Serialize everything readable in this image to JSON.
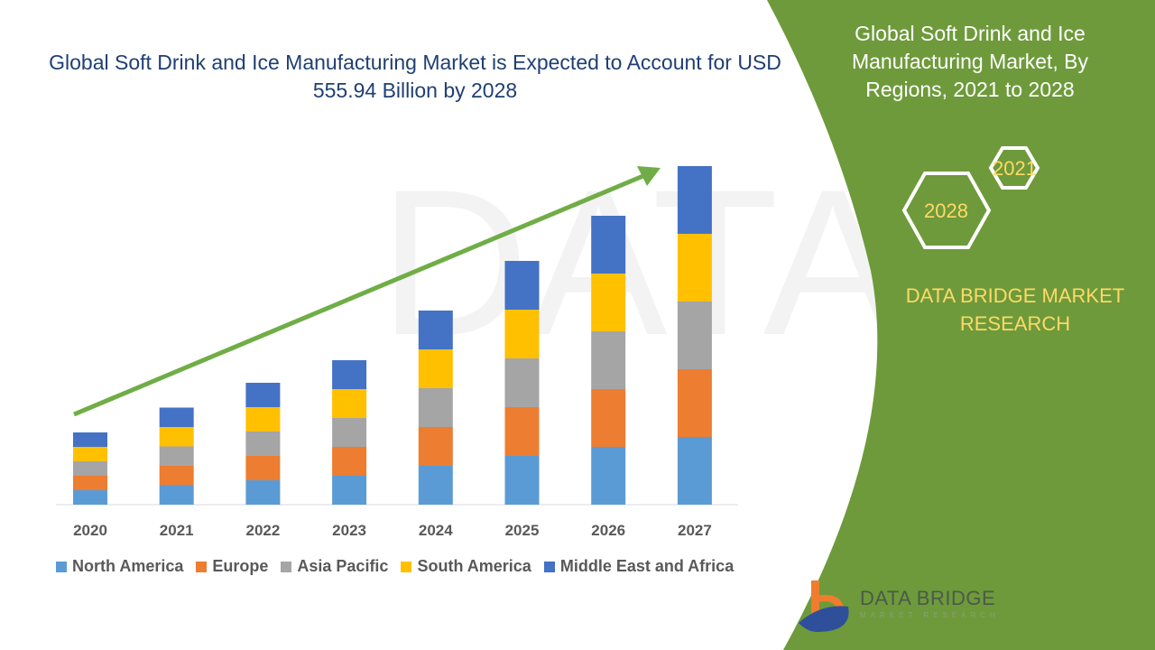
{
  "title": "Global Soft Drink and Ice Manufacturing Market is Expected to Account for USD 555.94 Billion by 2028",
  "side_panel": {
    "title": "Global Soft Drink and Ice Manufacturing Market, By Regions, 2021 to 2028",
    "hex_years": [
      "2021",
      "2028"
    ],
    "brand": "DATA BRIDGE MARKET RESEARCH",
    "logo_text": "DATA BRIDGE",
    "logo_subtext": "MARKET RESEARCH",
    "color": "#6e9a3b"
  },
  "chart_data": {
    "type": "bar",
    "stacked": true,
    "title": "",
    "xlabel": "",
    "ylabel": "",
    "categories": [
      "2020",
      "2021",
      "2022",
      "2023",
      "2024",
      "2025",
      "2026",
      "2027"
    ],
    "series": [
      {
        "name": "North America",
        "color": "#5b9bd5",
        "values": [
          16,
          21.5,
          27,
          32,
          43,
          54,
          64,
          75
        ]
      },
      {
        "name": "Europe",
        "color": "#ed7d31",
        "values": [
          16,
          21.5,
          27,
          32,
          43,
          54,
          64,
          75
        ]
      },
      {
        "name": "Asia Pacific",
        "color": "#a5a5a5",
        "values": [
          16,
          21.5,
          27,
          32,
          43,
          54,
          64,
          75
        ]
      },
      {
        "name": "South America",
        "color": "#ffc000",
        "values": [
          16,
          21.5,
          27,
          32,
          43,
          54,
          64,
          75
        ]
      },
      {
        "name": "Middle East and Africa",
        "color": "#4472c4",
        "values": [
          16,
          21.5,
          27,
          32,
          43,
          54,
          64,
          75
        ]
      }
    ],
    "ylim": [
      0,
      375
    ],
    "grid": false,
    "legend_placement": "bottom",
    "trend_arrow_color": "#70ad47"
  }
}
